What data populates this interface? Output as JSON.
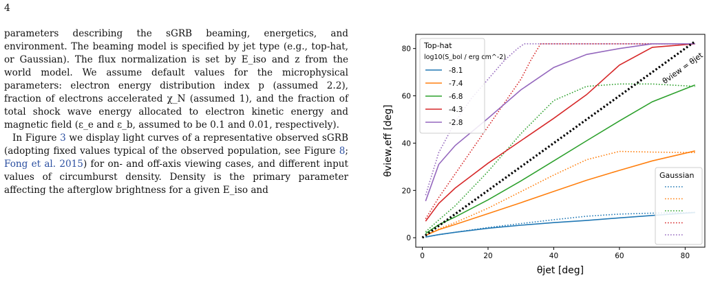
{
  "page": {
    "number": "4"
  },
  "body_text": {
    "p1": "parameters describing the sGRB beaming, energetics, and environment. The beaming model is specified by jet type (e.g., top-hat, or Gaussian). The flux normalization is set by E_iso and z from the world model. We assume default values for the microphysical parameters: electron energy distribution index p (assumed 2.2), fraction of electrons accelerated χ_N (assumed 1), and the fraction of total shock wave energy allocated to electron kinetic energy and magnetic field (ε_e and ε_b, assumed to be 0.1 and 0.01, respectively).",
    "p2_a": "In Figure ",
    "p2_ref1": "3",
    "p2_b": " we display light curves of a representative observed sGRB (adopting fixed values typical of the observed population, see Figure ",
    "p2_ref2": "8",
    "p2_c": "; ",
    "p2_ref3": "Fong et al. 2015",
    "p2_d": ") for on- and off-axis viewing cases, and different input values of circumburst density. Density is the primary parameter affecting the afterglow brightness for a given E_iso and"
  },
  "chart_data": {
    "type": "line",
    "xlabel": "θjet [deg]",
    "ylabel": "θview,eff [deg]",
    "xlim": [
      -2,
      86
    ],
    "ylim": [
      -4,
      86
    ],
    "xticks": [
      0,
      20,
      40,
      60,
      80
    ],
    "yticks": [
      0,
      20,
      40,
      60,
      80
    ],
    "grid": false,
    "legend_tophat": {
      "title": "Top-hat",
      "subtitle": "log10(S_bol / erg cm^-2)",
      "placement": "top-left",
      "entries": [
        "-8.1",
        "-7.4",
        "-6.8",
        "-4.3",
        "-2.8"
      ]
    },
    "legend_gaussian": {
      "title": "Gaussian",
      "placement": "bottom-right"
    },
    "diagonal_label": "θview = θjet",
    "colors": [
      "#1f77b4",
      "#ff7f0e",
      "#2ca02c",
      "#d62728",
      "#9467bd"
    ],
    "x": [
      1,
      5,
      10,
      20,
      30,
      40,
      50,
      60,
      70,
      83
    ],
    "series_tophat": [
      {
        "name": "-8.1",
        "values": [
          0.3,
          1.3,
          2.3,
          4.0,
          5.3,
          6.4,
          7.3,
          8.4,
          9.4,
          10.7
        ]
      },
      {
        "name": "-7.4",
        "values": [
          1.0,
          3.4,
          5.6,
          10.2,
          14.8,
          19.6,
          24.3,
          28.5,
          32.5,
          36.7
        ]
      },
      {
        "name": "-6.8",
        "values": [
          1.8,
          5.5,
          8.8,
          16.0,
          24.0,
          32.5,
          41.0,
          49.4,
          57.5,
          64.6
        ]
      },
      {
        "name": "-4.3",
        "values": [
          7.0,
          14.5,
          21.0,
          31.5,
          41.0,
          50.5,
          60.5,
          73.0,
          80.5,
          82.0
        ]
      },
      {
        "name": "-2.8",
        "values": [
          15.5,
          31.0,
          39.0,
          50.5,
          62.5,
          72.0,
          77.5,
          80.0,
          82.0,
          82.0
        ]
      }
    ],
    "series_gaussian": [
      {
        "x": [
          1,
          5,
          10,
          20,
          30,
          40,
          50,
          60,
          70,
          83
        ],
        "values": [
          0.3,
          1.3,
          2.3,
          4.3,
          6.0,
          7.6,
          9.1,
          10.0,
          10.4,
          10.7
        ]
      },
      {
        "x": [
          1,
          5,
          10,
          20,
          30,
          40,
          50,
          60,
          70,
          83
        ],
        "values": [
          1.0,
          3.7,
          6.4,
          12.5,
          19.5,
          26.5,
          33.0,
          36.5,
          36.2,
          36.0
        ]
      },
      {
        "x": [
          1,
          5,
          10,
          20,
          30,
          40,
          50,
          60,
          70,
          83
        ],
        "values": [
          2.5,
          7.5,
          13.5,
          28.0,
          44.0,
          58.0,
          64.0,
          65.0,
          65.0,
          64.0
        ]
      },
      {
        "x": [
          1,
          5,
          10,
          15,
          20,
          25,
          30,
          33,
          36,
          83
        ],
        "values": [
          8.0,
          17.0,
          27.0,
          37.0,
          47.0,
          57.0,
          67.0,
          75.0,
          82.0,
          82.0
        ]
      },
      {
        "x": [
          1,
          5,
          10,
          15,
          20,
          25,
          29,
          31,
          33,
          83
        ],
        "values": [
          18.0,
          36.0,
          49.0,
          59.0,
          67.0,
          75.0,
          80.0,
          82.0,
          82.0,
          82.0
        ]
      }
    ],
    "diagonal": {
      "x": [
        0,
        83
      ],
      "values": [
        0,
        83
      ]
    }
  }
}
